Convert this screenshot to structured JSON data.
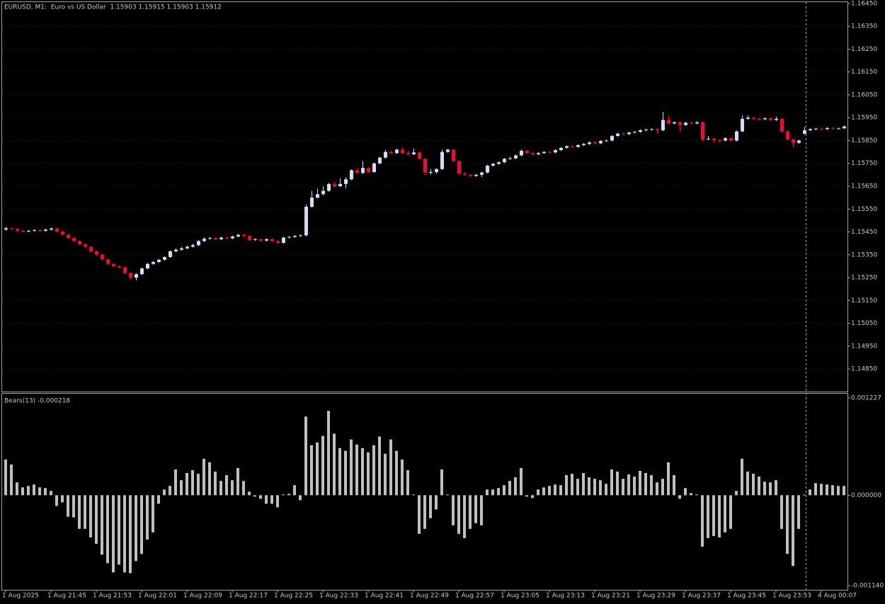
{
  "chart_data": [
    {
      "type": "candlestick",
      "title": "EURUSD, M1:  Euro vs US Dollar  1.15903 1.15915 1.15903 1.15912",
      "up_color": "#d4dcf0",
      "down_color": "#dc143c",
      "grid": true,
      "xlim": [
        -0.625,
        148.625
      ],
      "ylim": [
        1.14751,
        1.16456
      ],
      "yticks": [
        {
          "value": 1.1645,
          "label": "1.16450"
        },
        {
          "value": 1.1635,
          "label": "1.16350"
        },
        {
          "value": 1.1625,
          "label": "1.16250"
        },
        {
          "value": 1.1615,
          "label": "1.16150"
        },
        {
          "value": 1.1605,
          "label": "1.16050"
        },
        {
          "value": 1.1595,
          "label": "1.15950"
        },
        {
          "value": 1.1585,
          "label": "1.15850"
        },
        {
          "value": 1.1575,
          "label": "1.15750"
        },
        {
          "value": 1.1565,
          "label": "1.15650"
        },
        {
          "value": 1.1555,
          "label": "1.15550"
        },
        {
          "value": 1.1545,
          "label": "1.15450"
        },
        {
          "value": 1.1535,
          "label": "1.15350"
        },
        {
          "value": 1.1525,
          "label": "1.15250"
        },
        {
          "value": 1.1515,
          "label": "1.15150"
        },
        {
          "value": 1.1505,
          "label": "1.15050"
        },
        {
          "value": 1.1495,
          "label": "1.14950"
        },
        {
          "value": 1.1485,
          "label": "1.14850"
        }
      ],
      "open": [
        1.1546,
        1.15466,
        1.15463,
        1.15455,
        1.15452,
        1.15455,
        1.15458,
        1.15455,
        1.1546,
        1.15465,
        1.15452,
        1.15438,
        1.15424,
        1.1541,
        1.15396,
        1.15385,
        1.15365,
        1.1535,
        1.1533,
        1.1531,
        1.153,
        1.15295,
        1.1527,
        1.1525,
        1.15265,
        1.1529,
        1.1531,
        1.15318,
        1.15328,
        1.1534,
        1.15365,
        1.15372,
        1.15378,
        1.15385,
        1.15392,
        1.1541,
        1.1542,
        1.15423,
        1.15418,
        1.15425,
        1.15422,
        1.1543,
        1.15437,
        1.15432,
        1.15415,
        1.15418,
        1.15412,
        1.15418,
        1.1541,
        1.15402,
        1.15425,
        1.15428,
        1.15432,
        1.15435,
        1.1556,
        1.156,
        1.15615,
        1.1563,
        1.1566,
        1.1565,
        1.1566,
        1.1568,
        1.1572,
        1.15708,
        1.1573,
        1.15712,
        1.1575,
        1.15775,
        1.158,
        1.15795,
        1.1581,
        1.15795,
        1.1579,
        1.15798,
        1.1577,
        1.1571,
        1.15712,
        1.15725,
        1.158,
        1.1581,
        1.1576,
        1.15705,
        1.157,
        1.15695,
        1.157,
        1.1571,
        1.1574,
        1.15748,
        1.15755,
        1.1577,
        1.15772,
        1.15785,
        1.15805,
        1.15795,
        1.1579,
        1.15795,
        1.158,
        1.15798,
        1.15808,
        1.15818,
        1.15825,
        1.15822,
        1.1583,
        1.15835,
        1.15842,
        1.15838,
        1.15848,
        1.1585,
        1.1587,
        1.1588,
        1.15878,
        1.15885,
        1.15888,
        1.15895,
        1.15898,
        1.159,
        1.15895,
        1.1594,
        1.15925,
        1.1593,
        1.15918,
        1.15928,
        1.15925,
        1.1593,
        1.15855,
        1.15858,
        1.15852,
        1.1585,
        1.1586,
        1.1585,
        1.1589,
        1.15945,
        1.1595,
        1.15945,
        1.15943,
        1.15947,
        1.1594,
        1.15945,
        1.1589,
        1.15855,
        1.1584,
        1.1588,
        1.15895,
        1.159,
        1.15902,
        1.159,
        1.15905,
        1.15903,
        1.15903
      ],
      "high": [
        1.15472,
        1.1547,
        1.15467,
        1.15459,
        1.15459,
        1.15462,
        1.15462,
        1.15464,
        1.1547,
        1.15469,
        1.15456,
        1.15442,
        1.15428,
        1.15414,
        1.154,
        1.15389,
        1.15369,
        1.15354,
        1.15334,
        1.15314,
        1.15304,
        1.15299,
        1.15274,
        1.15269,
        1.15294,
        1.15314,
        1.15322,
        1.15332,
        1.15344,
        1.15369,
        1.15378,
        1.15384,
        1.15391,
        1.15398,
        1.15414,
        1.15426,
        1.15428,
        1.15427,
        1.15429,
        1.15429,
        1.15434,
        1.15442,
        1.15441,
        1.15436,
        1.15422,
        1.15422,
        1.15422,
        1.15422,
        1.15414,
        1.15429,
        1.15432,
        1.15436,
        1.15439,
        1.1557,
        1.1563,
        1.1564,
        1.1565,
        1.15664,
        1.1567,
        1.15685,
        1.1569,
        1.15724,
        1.1573,
        1.1576,
        1.15734,
        1.15754,
        1.15779,
        1.1581,
        1.15805,
        1.15814,
        1.1582,
        1.15805,
        1.15815,
        1.15802,
        1.15774,
        1.15725,
        1.15729,
        1.1581,
        1.15814,
        1.15814,
        1.15764,
        1.15712,
        1.15704,
        1.15704,
        1.15714,
        1.15744,
        1.15752,
        1.15759,
        1.15774,
        1.1578,
        1.15789,
        1.15812,
        1.15809,
        1.15799,
        1.15799,
        1.15804,
        1.15804,
        1.15812,
        1.15822,
        1.15829,
        1.15829,
        1.15834,
        1.15839,
        1.15846,
        1.15846,
        1.15852,
        1.15854,
        1.15874,
        1.15884,
        1.15884,
        1.15889,
        1.15892,
        1.15899,
        1.15902,
        1.15904,
        1.15904,
        1.15975,
        1.1596,
        1.15934,
        1.15934,
        1.15932,
        1.15932,
        1.15934,
        1.15934,
        1.1587,
        1.15862,
        1.15856,
        1.15864,
        1.15864,
        1.15894,
        1.1596,
        1.1596,
        1.15954,
        1.1595,
        1.15951,
        1.15951,
        1.15955,
        1.15949,
        1.15894,
        1.15859,
        1.15854,
        1.1591,
        1.15904,
        1.15906,
        1.15906,
        1.15909,
        1.15909,
        1.15907,
        1.15915
      ],
      "low": [
        1.15455,
        1.15459,
        1.15451,
        1.15448,
        1.15448,
        1.15451,
        1.15451,
        1.15451,
        1.15456,
        1.15448,
        1.15434,
        1.1542,
        1.15406,
        1.15392,
        1.15381,
        1.15361,
        1.15346,
        1.15326,
        1.15306,
        1.15296,
        1.15291,
        1.15266,
        1.1524,
        1.15238,
        1.15261,
        1.15286,
        1.15306,
        1.15314,
        1.15324,
        1.15336,
        1.15361,
        1.15368,
        1.15374,
        1.15381,
        1.15388,
        1.15406,
        1.15416,
        1.15414,
        1.15414,
        1.15418,
        1.15418,
        1.15426,
        1.15428,
        1.15411,
        1.15411,
        1.15408,
        1.15408,
        1.15406,
        1.15398,
        1.15398,
        1.15421,
        1.15424,
        1.15428,
        1.15431,
        1.15556,
        1.15596,
        1.15611,
        1.15626,
        1.15646,
        1.15646,
        1.1564,
        1.15676,
        1.15704,
        1.15704,
        1.15708,
        1.15708,
        1.15746,
        1.15771,
        1.15791,
        1.15791,
        1.15791,
        1.15786,
        1.15786,
        1.15766,
        1.157,
        1.157,
        1.15705,
        1.15721,
        1.15796,
        1.15756,
        1.15701,
        1.15696,
        1.15691,
        1.15691,
        1.1569,
        1.15706,
        1.15736,
        1.15744,
        1.15751,
        1.15766,
        1.15768,
        1.15781,
        1.15791,
        1.15786,
        1.15786,
        1.15791,
        1.15794,
        1.15794,
        1.15804,
        1.15814,
        1.15818,
        1.15818,
        1.15826,
        1.15831,
        1.15834,
        1.15834,
        1.15844,
        1.15846,
        1.15866,
        1.15874,
        1.15874,
        1.15881,
        1.15884,
        1.15891,
        1.15894,
        1.1588,
        1.15891,
        1.15921,
        1.15921,
        1.1589,
        1.15914,
        1.15921,
        1.15921,
        1.15845,
        1.15851,
        1.1584,
        1.1584,
        1.15846,
        1.15846,
        1.15846,
        1.15886,
        1.15941,
        1.15941,
        1.15939,
        1.15939,
        1.15936,
        1.15936,
        1.15886,
        1.15851,
        1.1582,
        1.15836,
        1.15876,
        1.15891,
        1.15896,
        1.15896,
        1.15896,
        1.15899,
        1.15899,
        1.15903
      ],
      "close": [
        1.15466,
        1.15463,
        1.15455,
        1.15452,
        1.15455,
        1.15458,
        1.15455,
        1.1546,
        1.15465,
        1.15452,
        1.15438,
        1.15424,
        1.1541,
        1.15396,
        1.15385,
        1.15365,
        1.1535,
        1.1533,
        1.1531,
        1.153,
        1.15295,
        1.1527,
        1.1525,
        1.15265,
        1.1529,
        1.1531,
        1.15318,
        1.15328,
        1.1534,
        1.15365,
        1.15372,
        1.15378,
        1.15385,
        1.15392,
        1.1541,
        1.1542,
        1.15423,
        1.15418,
        1.15425,
        1.15422,
        1.1543,
        1.15437,
        1.15432,
        1.15415,
        1.15418,
        1.15412,
        1.15418,
        1.1541,
        1.15402,
        1.15425,
        1.15428,
        1.15432,
        1.15435,
        1.1556,
        1.156,
        1.15615,
        1.1563,
        1.1566,
        1.1565,
        1.1566,
        1.1568,
        1.1572,
        1.15708,
        1.1573,
        1.15712,
        1.1575,
        1.15775,
        1.158,
        1.15795,
        1.1581,
        1.15795,
        1.1579,
        1.15798,
        1.1577,
        1.1571,
        1.15712,
        1.15725,
        1.158,
        1.1581,
        1.1576,
        1.15705,
        1.157,
        1.15695,
        1.157,
        1.1571,
        1.1574,
        1.15748,
        1.15755,
        1.1577,
        1.15772,
        1.15785,
        1.15805,
        1.15795,
        1.1579,
        1.15795,
        1.158,
        1.15798,
        1.15808,
        1.15818,
        1.15825,
        1.15822,
        1.1583,
        1.15835,
        1.15842,
        1.15838,
        1.15848,
        1.1585,
        1.1587,
        1.1588,
        1.15878,
        1.15885,
        1.15888,
        1.15895,
        1.15898,
        1.159,
        1.15895,
        1.1594,
        1.15925,
        1.1593,
        1.15918,
        1.15928,
        1.15925,
        1.1593,
        1.15855,
        1.15858,
        1.15852,
        1.1585,
        1.1586,
        1.1585,
        1.1589,
        1.15945,
        1.1595,
        1.15945,
        1.15943,
        1.15947,
        1.1594,
        1.15945,
        1.1589,
        1.15855,
        1.1584,
        1.1585,
        1.15895,
        1.159,
        1.15902,
        1.159,
        1.15905,
        1.15903,
        1.15903,
        1.15912
      ]
    },
    {
      "type": "bar",
      "title": "Bears(13) -0.000218",
      "color": "#c0c0c0",
      "xlim": [
        -0.625,
        148.625
      ],
      "ylim": [
        -0.00114,
        0.001227
      ],
      "yticks": [
        {
          "value": 0.001227,
          "label": "0.001227"
        },
        {
          "value": 0,
          "label": "0.000000"
        },
        {
          "value": -0.00114,
          "label": "-0.001140"
        }
      ],
      "xticks": [
        {
          "value": 0,
          "label": "1 Aug 2025"
        },
        {
          "value": 8,
          "label": "1 Aug 21:45"
        },
        {
          "value": 16,
          "label": "1 Aug 21:53"
        },
        {
          "value": 24,
          "label": "1 Aug 22:01"
        },
        {
          "value": 32,
          "label": "1 Aug 22:09"
        },
        {
          "value": 40,
          "label": "1 Aug 22:17"
        },
        {
          "value": 48,
          "label": "1 Aug 22:25"
        },
        {
          "value": 56,
          "label": "1 Aug 22:33"
        },
        {
          "value": 64,
          "label": "1 Aug 22:41"
        },
        {
          "value": 72,
          "label": "1 Aug 22:49"
        },
        {
          "value": 80,
          "label": "1 Aug 22:57"
        },
        {
          "value": 88,
          "label": "1 Aug 23:05"
        },
        {
          "value": 96,
          "label": "1 Aug 23:13"
        },
        {
          "value": 104,
          "label": "1 Aug 23:21"
        },
        {
          "value": 112,
          "label": "1 Aug 23:29"
        },
        {
          "value": 120,
          "label": "1 Aug 23:37"
        },
        {
          "value": 128,
          "label": "1 Aug 23:45"
        },
        {
          "value": 136,
          "label": "1 Aug 23:53"
        },
        {
          "value": 144,
          "label": "4 Aug 00:07"
        }
      ],
      "values": [
        0.000451,
        0.000388,
        0.000162,
        9.9e-05,
        0.000117,
        0.000135,
        9.9e-05,
        9e-05,
        5.4e-05,
        -0.000135,
        -9e-05,
        -0.000271,
        -0.00028,
        -0.000424,
        -0.000424,
        -0.000532,
        -0.000613,
        -0.000749,
        -0.000857,
        -0.000974,
        -0.000875,
        -0.000974,
        -0.000983,
        -0.00083,
        -0.00074,
        -0.000559,
        -0.000469,
        -0.000108,
        7.2e-05,
        0.000117,
        0.000325,
        0.000189,
        0.00028,
        0.000316,
        0.000271,
        0.00046,
        0.000415,
        0.000298,
        0.00018,
        0.000253,
        0.000189,
        0.000343,
        0.00018,
        4.5e-05,
        -1.8e-05,
        -4.5e-05,
        -0.000108,
        -0.000108,
        -0.000153,
        9e-06,
        1.8e-05,
        0.000126,
        -6.3e-05,
        0.000992,
        0.000631,
        0.000667,
        0.000749,
        0.001064,
        0.000776,
        0.000595,
        0.000559,
        0.000704,
        0.00064,
        0.000595,
        0.000541,
        0.000631,
        0.00074,
        0.000523,
        0.000704,
        0.000559,
        0.000451,
        0.000316,
        9e-06,
        -0.000487,
        -0.000424,
        -0.000289,
        -0.00018,
        0.000325,
        9e-06,
        -0.000379,
        -0.000487,
        -0.000541,
        -0.000424,
        -0.000352,
        -0.000379,
        7.2e-05,
        7.2e-05,
        9e-05,
        0.000126,
        0.00018,
        0.000226,
        0.000343,
        -1.8e-05,
        -3.6e-05,
        7.2e-05,
        9.9e-05,
        0.000117,
        0.000135,
        0.000126,
        0.000253,
        0.000271,
        0.000207,
        0.00028,
        0.000226,
        0.000207,
        0.000189,
        0.000144,
        0.000325,
        0.000298,
        0.000207,
        0.000262,
        0.000235,
        0.000307,
        0.00028,
        0.000253,
        0.000162,
        0.000207,
        0.000415,
        0.000253,
        -4.5e-05,
        9e-05,
        2.7e-05,
        9e-06,
        -0.000649,
        -0.000541,
        -0.000514,
        -0.000532,
        -0.000469,
        -0.000424,
        5.4e-05,
        0.00046,
        0.000298,
        0.000271,
        0.000235,
        0.000171,
        0.000162,
        0.000189,
        -0.000424,
        -0.00074,
        -0.000893,
        -0.000424,
        9e-06,
        7.2e-05,
        0.000153,
        0.000144,
        0.000135,
        0.000126,
        0.000117,
        0.000117
      ]
    }
  ]
}
